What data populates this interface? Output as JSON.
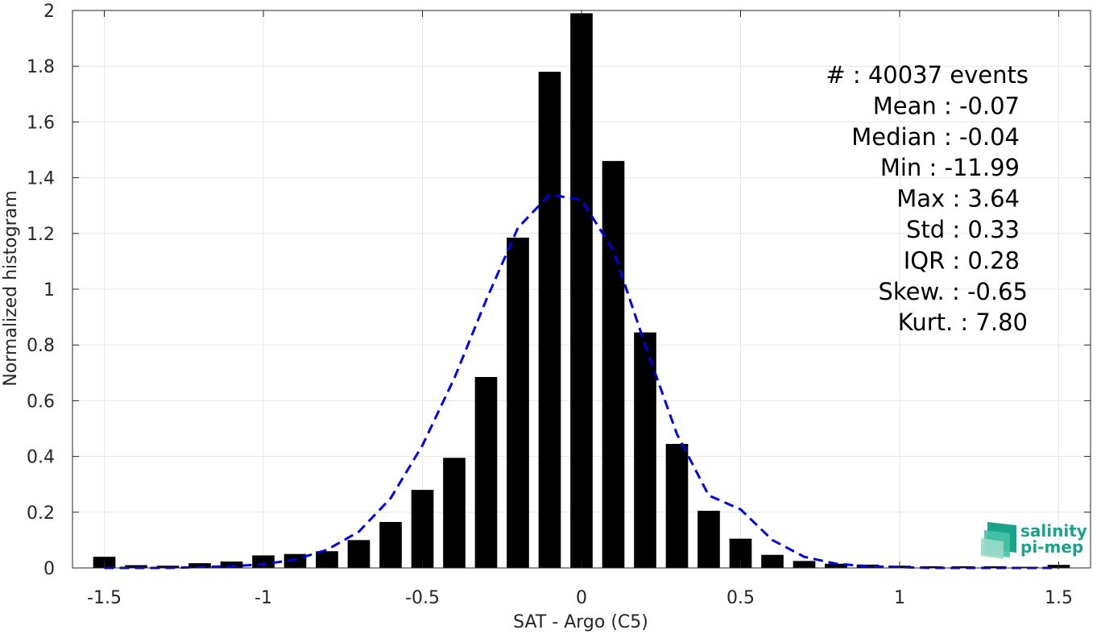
{
  "chart_data": {
    "type": "bar",
    "xlabel": "SAT - Argo (C5)",
    "ylabel": "Normalized histogram",
    "xlim": [
      -1.6,
      1.6
    ],
    "ylim": [
      0,
      2
    ],
    "xticks": [
      -1.5,
      -1,
      -0.5,
      0,
      0.5,
      1,
      1.5
    ],
    "xtick_labels": [
      "-1.5",
      "-1",
      "-0.5",
      "0",
      "0.5",
      "1",
      "1.5"
    ],
    "yticks": [
      0,
      0.2,
      0.4,
      0.6,
      0.8,
      1,
      1.2,
      1.4,
      1.6,
      1.8,
      2
    ],
    "ytick_labels": [
      "0",
      "0.2",
      "0.4",
      "0.6",
      "0.8",
      "1",
      "1.2",
      "1.4",
      "1.6",
      "1.8",
      "2"
    ],
    "grid": true,
    "bar_width": 0.07,
    "bars": {
      "x": [
        -1.5,
        -1.4,
        -1.3,
        -1.2,
        -1.1,
        -1.0,
        -0.9,
        -0.8,
        -0.7,
        -0.6,
        -0.5,
        -0.4,
        -0.3,
        -0.2,
        -0.1,
        0.0,
        0.1,
        0.2,
        0.3,
        0.4,
        0.5,
        0.6,
        0.7,
        0.8,
        0.9,
        1.0,
        1.1,
        1.2,
        1.3,
        1.4,
        1.5
      ],
      "values": [
        0.04,
        0.01,
        0.008,
        0.017,
        0.023,
        0.045,
        0.05,
        0.06,
        0.1,
        0.165,
        0.28,
        0.395,
        0.685,
        1.185,
        1.78,
        1.99,
        1.46,
        0.845,
        0.445,
        0.205,
        0.105,
        0.047,
        0.025,
        0.015,
        0.012,
        0.008,
        0.006,
        0.006,
        0.006,
        0.004,
        0.011
      ],
      "color": "#000000"
    },
    "fit": {
      "x": [
        -1.5,
        -1.4,
        -1.3,
        -1.2,
        -1.1,
        -1.0,
        -0.9,
        -0.8,
        -0.7,
        -0.6,
        -0.5,
        -0.4,
        -0.3,
        -0.2,
        -0.1,
        0.0,
        0.1,
        0.2,
        0.3,
        0.4,
        0.5,
        0.6,
        0.7,
        0.8,
        0.9,
        1.0,
        1.1,
        1.2,
        1.3,
        1.4,
        1.5
      ],
      "y": [
        0.0,
        0.0,
        0.0,
        0.003,
        0.006,
        0.013,
        0.03,
        0.065,
        0.13,
        0.25,
        0.44,
        0.68,
        0.96,
        1.22,
        1.34,
        1.32,
        1.14,
        0.8,
        0.48,
        0.26,
        0.21,
        0.1,
        0.04,
        0.015,
        0.006,
        0.003,
        0.0,
        0.0,
        0.0,
        0.0,
        0.0
      ],
      "color": "#0000e6",
      "style": "dashed"
    },
    "annotations": [
      "#  : 40037 events",
      "Mean : -0.07",
      "Median : -0.04",
      "Min : -11.99",
      "Max : 3.64",
      "Std : 0.33",
      "IQR : 0.28",
      "Skew. : -0.65",
      "Kurt. : 7.80"
    ]
  },
  "logo": {
    "line1": "salinity",
    "line2": "pi-mep"
  }
}
